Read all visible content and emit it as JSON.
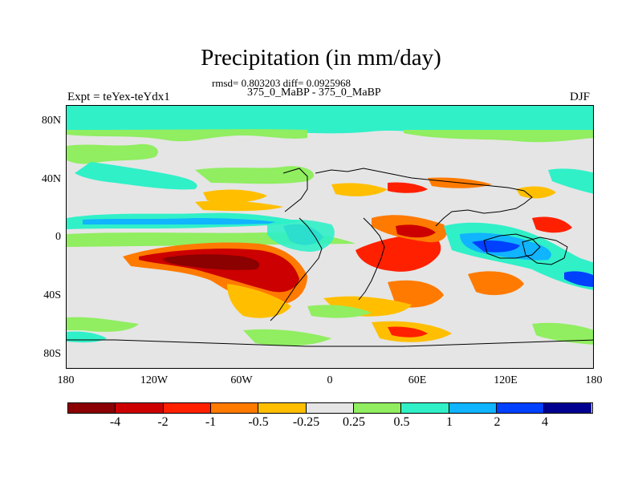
{
  "header": {
    "title": "Precipitation (in mm/day)",
    "stats": "rmsd= 0.803203 diff= 0.0925968",
    "subtitle": "375_0_MaBP - 375_0_MaBP",
    "left_label": "Expt = teYex-teYdx1",
    "right_label": "DJF"
  },
  "map": {
    "lat_ticks": [
      "80N",
      "40N",
      "0",
      "40S",
      "80S"
    ],
    "lon_ticks": [
      "180",
      "120W",
      "60W",
      "0",
      "60E",
      "120E",
      "180"
    ],
    "background_color": "#e5e5e5",
    "coastline_color": "#000000"
  },
  "colorbar": {
    "colors": [
      "#8b0000",
      "#cc0000",
      "#ff2000",
      "#ff7a00",
      "#ffbf00",
      "#e5e5e5",
      "#90ee60",
      "#30f0c8",
      "#10b4ff",
      "#0040ff",
      "#000090"
    ],
    "labels": [
      "-4",
      "-2",
      "-1",
      "-0.5",
      "-0.25",
      "0.25",
      "0.5",
      "1",
      "2",
      "4"
    ]
  }
}
